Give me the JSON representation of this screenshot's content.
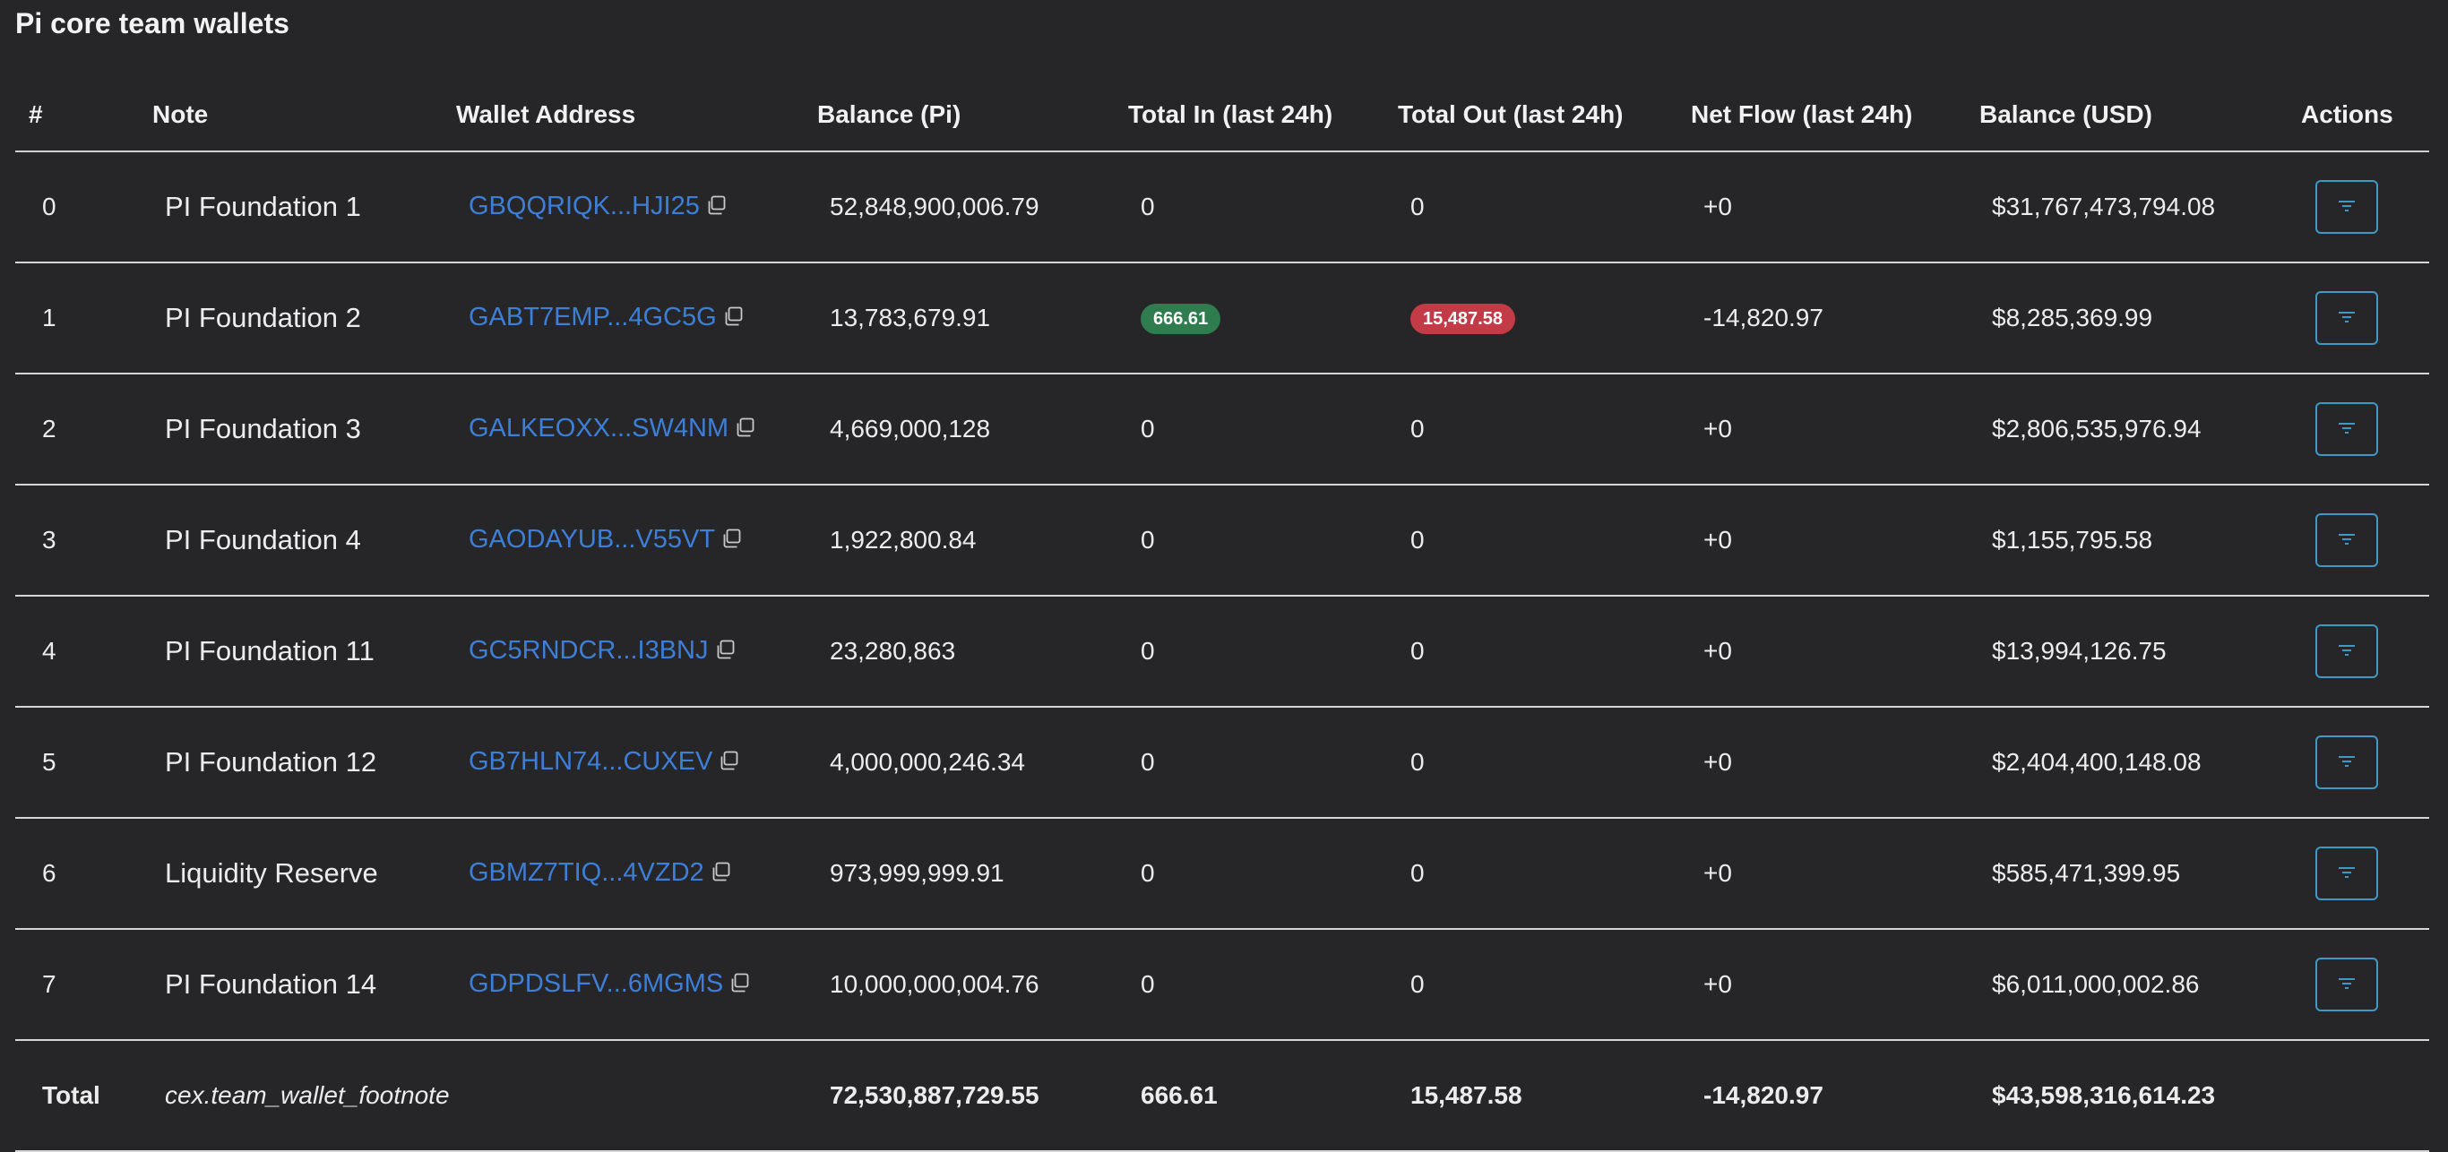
{
  "page": {
    "title": "Pi core team wallets"
  },
  "table": {
    "headers": [
      "#",
      "Note",
      "Wallet Address",
      "Balance (Pi)",
      "Total In (last 24h)",
      "Total Out (last 24h)",
      "Net Flow (last 24h)",
      "Balance (USD)",
      "Actions"
    ],
    "rows": [
      {
        "idx": "0",
        "note": "PI Foundation 1",
        "address": "GBQQRIQK...HJI25",
        "balance_pi": "52,848,900,006.79",
        "total_in": "0",
        "total_out": "0",
        "net_flow": "+0",
        "balance_usd": "$31,767,473,794.08"
      },
      {
        "idx": "1",
        "note": "PI Foundation 2",
        "address": "GABT7EMP...4GC5G",
        "balance_pi": "13,783,679.91",
        "total_in": "666.61",
        "total_out": "15,487.58",
        "net_flow": "-14,820.97",
        "balance_usd": "$8,285,369.99"
      },
      {
        "idx": "2",
        "note": "PI Foundation 3",
        "address": "GALKEOXX...SW4NM",
        "balance_pi": "4,669,000,128",
        "total_in": "0",
        "total_out": "0",
        "net_flow": "+0",
        "balance_usd": "$2,806,535,976.94"
      },
      {
        "idx": "3",
        "note": "PI Foundation 4",
        "address": "GAODAYUB...V55VT",
        "balance_pi": "1,922,800.84",
        "total_in": "0",
        "total_out": "0",
        "net_flow": "+0",
        "balance_usd": "$1,155,795.58"
      },
      {
        "idx": "4",
        "note": "PI Foundation 11",
        "address": "GC5RNDCR...I3BNJ",
        "balance_pi": "23,280,863",
        "total_in": "0",
        "total_out": "0",
        "net_flow": "+0",
        "balance_usd": "$13,994,126.75"
      },
      {
        "idx": "5",
        "note": "PI Foundation 12",
        "address": "GB7HLN74...CUXEV",
        "balance_pi": "4,000,000,246.34",
        "total_in": "0",
        "total_out": "0",
        "net_flow": "+0",
        "balance_usd": "$2,404,400,148.08"
      },
      {
        "idx": "6",
        "note": "Liquidity Reserve",
        "address": "GBMZ7TIQ...4VZD2",
        "balance_pi": "973,999,999.91",
        "total_in": "0",
        "total_out": "0",
        "net_flow": "+0",
        "balance_usd": "$585,471,399.95"
      },
      {
        "idx": "7",
        "note": "PI Foundation 14",
        "address": "GDPDSLFV...6MGMS",
        "balance_pi": "10,000,000,004.76",
        "total_in": "0",
        "total_out": "0",
        "net_flow": "+0",
        "balance_usd": "$6,011,000,002.86"
      }
    ],
    "total": {
      "label": "Total",
      "footnote": "cex.team_wallet_footnote",
      "balance_pi": "72,530,887,729.55",
      "total_in": "666.61",
      "total_out": "15,487.58",
      "net_flow": "-14,820.97",
      "balance_usd": "$43,598,316,614.23"
    }
  },
  "icons": {
    "copy": "copy-icon",
    "filter": "filter-icon"
  },
  "colors": {
    "background": "#262628",
    "link": "#3d7fd8",
    "positive": "#4ea662",
    "negative": "#e0525d",
    "badge_in": "#2f7d4f",
    "badge_out": "#c23b47",
    "action_border": "#3e99c7"
  }
}
